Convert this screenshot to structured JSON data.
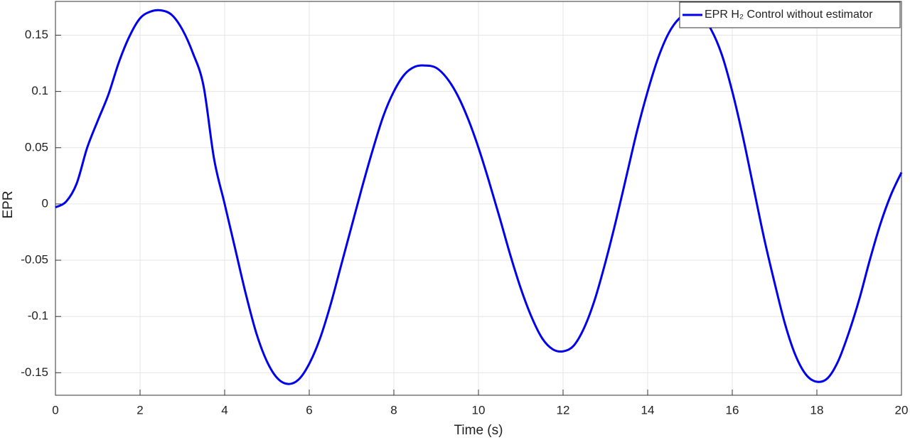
{
  "chart_data": {
    "type": "line",
    "x_label": "Time (s)",
    "y_label": "EPR",
    "x": [
      0,
      0.25,
      0.5,
      0.75,
      1,
      1.25,
      1.5,
      1.75,
      2,
      2.25,
      2.5,
      2.75,
      3,
      3.25,
      3.5,
      3.75,
      4,
      4.25,
      4.5,
      4.75,
      5,
      5.25,
      5.5,
      5.75,
      6,
      6.25,
      6.5,
      6.75,
      7,
      7.25,
      7.5,
      7.75,
      8,
      8.25,
      8.5,
      8.75,
      9,
      9.25,
      9.5,
      9.75,
      10,
      10.25,
      10.5,
      10.75,
      11,
      11.25,
      11.5,
      11.75,
      12,
      12.25,
      12.5,
      12.75,
      13,
      13.25,
      13.5,
      13.75,
      14,
      14.25,
      14.5,
      14.75,
      15,
      15.25,
      15.5,
      15.75,
      16,
      16.25,
      16.5,
      16.75,
      17,
      17.25,
      17.5,
      17.75,
      18,
      18.25,
      18.5,
      18.75,
      19,
      19.25,
      19.5,
      19.75,
      20
    ],
    "series": [
      {
        "name": "EPR H₂ Control without estimator",
        "color": "#0000ee",
        "values": [
          -0.003,
          0.002,
          0.018,
          0.05,
          0.074,
          0.097,
          0.126,
          0.149,
          0.165,
          0.171,
          0.172,
          0.168,
          0.155,
          0.134,
          0.105,
          0.04,
          0.0,
          -0.04,
          -0.08,
          -0.115,
          -0.14,
          -0.155,
          -0.16,
          -0.156,
          -0.142,
          -0.12,
          -0.09,
          -0.055,
          -0.02,
          0.015,
          0.048,
          0.078,
          0.1,
          0.115,
          0.122,
          0.123,
          0.121,
          0.112,
          0.097,
          0.076,
          0.05,
          0.02,
          -0.012,
          -0.045,
          -0.075,
          -0.1,
          -0.119,
          -0.129,
          -0.131,
          -0.126,
          -0.11,
          -0.085,
          -0.052,
          -0.015,
          0.025,
          0.065,
          0.1,
          0.13,
          0.152,
          0.165,
          0.17,
          0.168,
          0.155,
          0.133,
          0.1,
          0.06,
          0.015,
          -0.03,
          -0.07,
          -0.107,
          -0.135,
          -0.152,
          -0.158,
          -0.155,
          -0.14,
          -0.115,
          -0.085,
          -0.05,
          -0.018,
          0.008,
          0.028
        ]
      }
    ],
    "xlim": [
      0,
      20
    ],
    "xticks": [
      0,
      2,
      4,
      6,
      8,
      10,
      12,
      14,
      16,
      18,
      20
    ],
    "ylim": [
      -0.17,
      0.18
    ],
    "yticks": [
      -0.15,
      -0.1,
      -0.05,
      0,
      0.05,
      0.1,
      0.15
    ],
    "grid": true,
    "legend": "upper right"
  }
}
